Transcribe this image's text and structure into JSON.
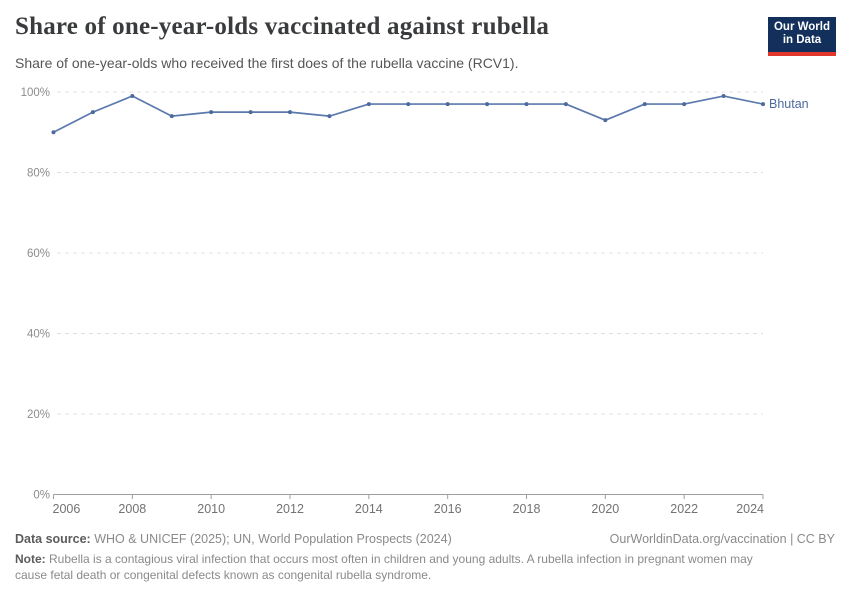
{
  "header": {
    "title": "Share of one-year-olds vaccinated against rubella",
    "subtitle": "Share of one-year-olds who received the first does of the rubella vaccine (RCV1).",
    "logo": {
      "line1": "Our World",
      "line2": "in Data",
      "bg_color": "#12305b",
      "accent_color": "#e0362c"
    }
  },
  "chart_data": {
    "type": "line",
    "title": "Share of one-year-olds vaccinated against rubella",
    "x": [
      2006,
      2007,
      2008,
      2009,
      2010,
      2011,
      2012,
      2013,
      2014,
      2015,
      2016,
      2017,
      2018,
      2019,
      2020,
      2021,
      2022,
      2023,
      2024
    ],
    "series": [
      {
        "name": "Bhutan",
        "color": "#4c6a9c",
        "line_color": "#5b79ad",
        "values": [
          90,
          95,
          99,
          94,
          95,
          95,
          95,
          94,
          97,
          97,
          97,
          97,
          97,
          97,
          93,
          97,
          97,
          99,
          97
        ]
      }
    ],
    "xlim": [
      2006,
      2024
    ],
    "ylim": [
      0,
      100
    ],
    "yticks": [
      [
        0,
        "0%"
      ],
      [
        20,
        "20%"
      ],
      [
        40,
        "40%"
      ],
      [
        60,
        "60%"
      ],
      [
        80,
        "80%"
      ],
      [
        100,
        "100%"
      ]
    ],
    "xticks": [
      2006,
      2008,
      2010,
      2012,
      2014,
      2016,
      2018,
      2020,
      2022,
      2024
    ],
    "grid": "horizontal-dashed",
    "legend_position": "end-of-line",
    "entity_label": "Bhutan"
  },
  "footer": {
    "source_label": "Data source:",
    "source_text": " WHO & UNICEF (2025); UN, World Population Prospects (2024)",
    "link_text": "OurWorldinData.org/vaccination | CC BY",
    "note_label": "Note:",
    "note_line1": " Rubella is a contagious viral infection that occurs most often in children and young adults. A rubella infection in pregnant women may",
    "note_line2": "cause fetal death or congenital defects known as congenital rubella syndrome."
  }
}
